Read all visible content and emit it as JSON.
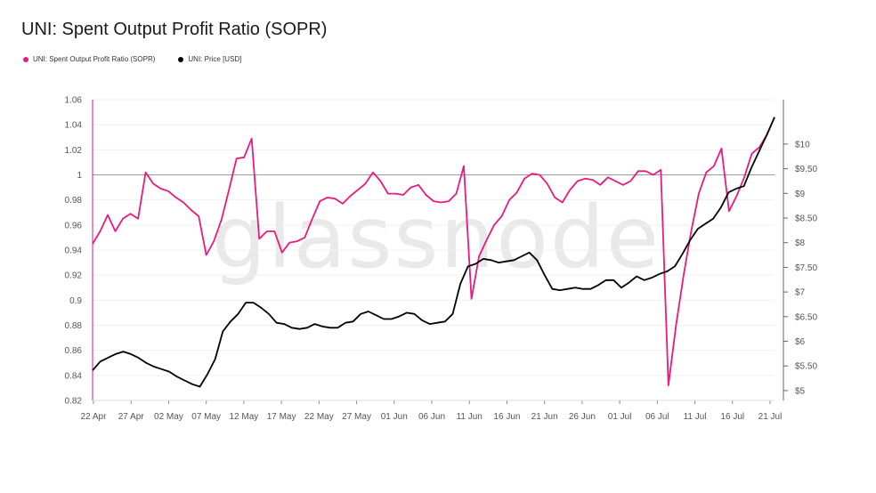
{
  "title": "UNI: Spent Output Profit Ratio (SOPR)",
  "watermark": "glassnode",
  "legend": [
    {
      "label": "UNI: Spent Output Profit Ratio (SOPR)",
      "color": "#ea1a7f"
    },
    {
      "label": "UNI: Price [USD]",
      "color": "#000000"
    }
  ],
  "chart_data": {
    "type": "line",
    "x_tick_labels": [
      "22 Apr",
      "27 Apr",
      "02 May",
      "07 May",
      "12 May",
      "17 May",
      "22 May",
      "27 May",
      "01 Jun",
      "06 Jun",
      "11 Jun",
      "16 Jun",
      "21 Jun",
      "26 Jun",
      "01 Jul",
      "06 Jul",
      "11 Jul",
      "16 Jul",
      "21 Jul"
    ],
    "left_axis": {
      "ticks": [
        "0.82",
        "0.84",
        "0.86",
        "0.88",
        "0.9",
        "0.92",
        "0.94",
        "0.96",
        "0.98",
        "1",
        "1.02",
        "1.04",
        "1.06"
      ],
      "range": [
        0.82,
        1.06
      ]
    },
    "right_axis": {
      "ticks": [
        "$5",
        "$5.50",
        "$6",
        "$6.50",
        "$7",
        "$7.50",
        "$8",
        "$8.50",
        "$9",
        "$9.50",
        "$10"
      ],
      "range": [
        4.8,
        10.9
      ]
    },
    "reference_line": 1,
    "series": [
      {
        "name": "UNI: Spent Output Profit Ratio (SOPR)",
        "color": "#ea1a7f",
        "axis": "left",
        "values": [
          0.945,
          0.955,
          0.968,
          0.955,
          0.965,
          0.969,
          0.965,
          1.002,
          0.993,
          0.989,
          0.987,
          0.982,
          0.978,
          0.972,
          0.967,
          0.936,
          0.947,
          0.964,
          0.988,
          1.013,
          1.014,
          1.029,
          0.949,
          0.955,
          0.955,
          0.938,
          0.946,
          0.947,
          0.95,
          0.965,
          0.979,
          0.982,
          0.981,
          0.977,
          0.983,
          0.988,
          0.993,
          1.002,
          0.995,
          0.985,
          0.985,
          0.984,
          0.99,
          0.992,
          0.984,
          0.979,
          0.978,
          0.979,
          0.985,
          1.007,
          0.901,
          0.935,
          0.948,
          0.96,
          0.967,
          0.98,
          0.986,
          0.997,
          1.001,
          1.0,
          0.993,
          0.982,
          0.978,
          0.988,
          0.995,
          0.997,
          0.996,
          0.992,
          0.998,
          0.995,
          0.992,
          0.995,
          1.003,
          1.003,
          1.0,
          1.004,
          0.832,
          0.88,
          0.92,
          0.955,
          0.985,
          1.002,
          1.007,
          1.021,
          0.971,
          0.983,
          0.998,
          1.017,
          1.022,
          1.032,
          1.046
        ]
      },
      {
        "name": "UNI: Price [USD]",
        "color": "#000000",
        "axis": "left",
        "values": [
          0.844,
          0.851,
          0.854,
          0.857,
          0.859,
          0.857,
          0.854,
          0.85,
          0.847,
          0.845,
          0.843,
          0.839,
          0.836,
          0.833,
          0.831,
          0.841,
          0.853,
          0.875,
          0.883,
          0.889,
          0.898,
          0.898,
          0.894,
          0.889,
          0.882,
          0.881,
          0.878,
          0.877,
          0.878,
          0.881,
          0.879,
          0.878,
          0.878,
          0.882,
          0.883,
          0.889,
          0.891,
          0.888,
          0.885,
          0.885,
          0.887,
          0.89,
          0.889,
          0.884,
          0.881,
          0.882,
          0.883,
          0.889,
          0.913,
          0.927,
          0.929,
          0.933,
          0.932,
          0.93,
          0.931,
          0.932,
          0.935,
          0.938,
          0.932,
          0.92,
          0.909,
          0.908,
          0.909,
          0.91,
          0.909,
          0.909,
          0.912,
          0.916,
          0.916,
          0.91,
          0.914,
          0.919,
          0.916,
          0.918,
          0.921,
          0.923,
          0.927,
          0.937,
          0.948,
          0.957,
          0.961,
          0.965,
          0.974,
          0.986,
          0.989,
          0.991,
          1.006,
          1.019,
          1.032,
          1.046
        ]
      }
    ]
  }
}
